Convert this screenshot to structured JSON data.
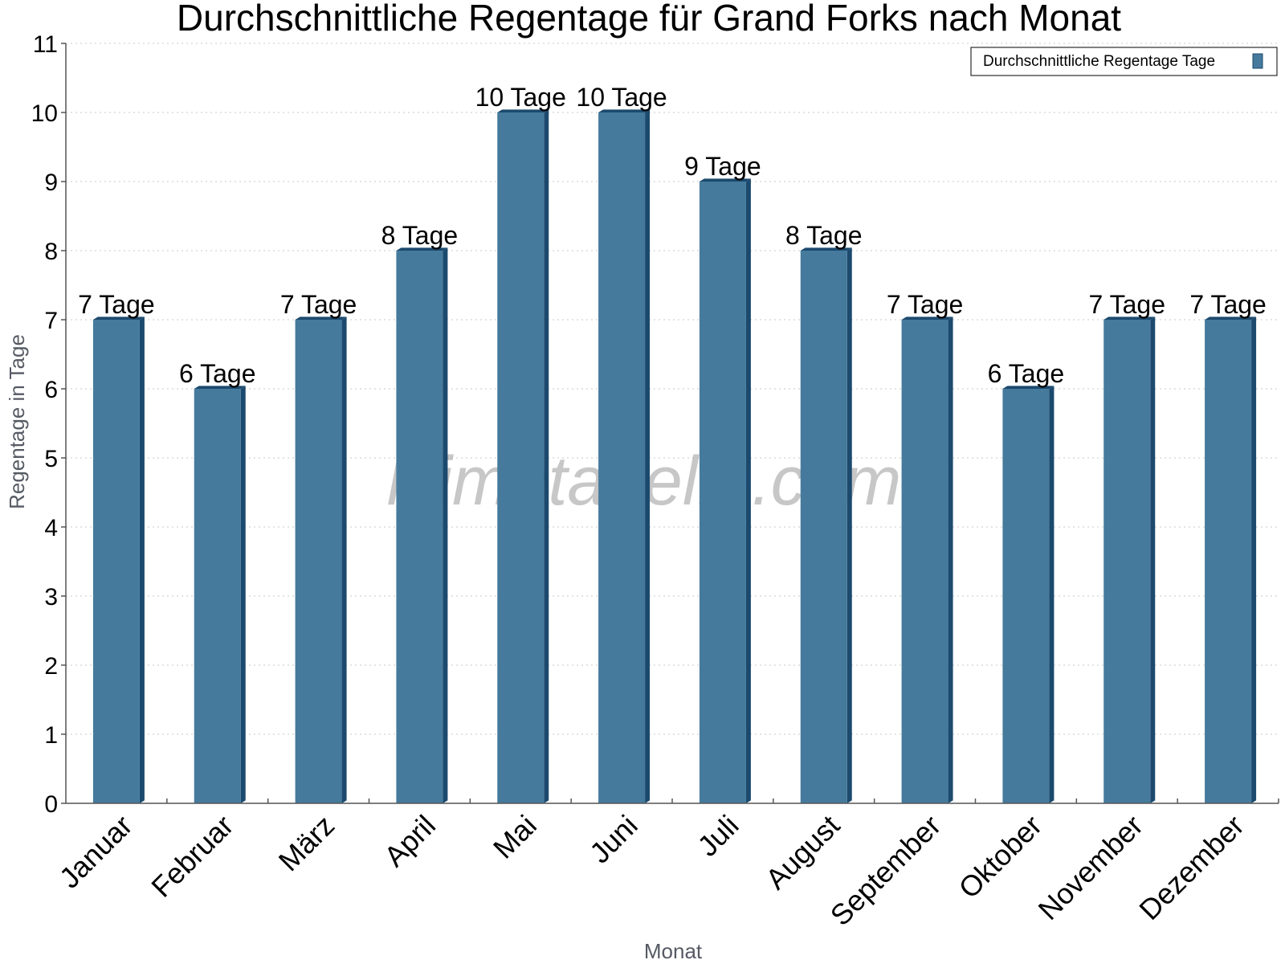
{
  "chart_data": {
    "type": "bar",
    "title": "Durchschnittliche Regentage für Grand Forks nach Monat",
    "xlabel": "Monat",
    "ylabel": "Regentage in Tage",
    "categories": [
      "Januar",
      "Februar",
      "März",
      "April",
      "Mai",
      "Juni",
      "Juli",
      "August",
      "September",
      "Oktober",
      "November",
      "Dezember"
    ],
    "series": [
      {
        "name": "Durchschnittliche Regentage Tage",
        "values": [
          7,
          6,
          7,
          8,
          10,
          10,
          9,
          8,
          7,
          6,
          7,
          7
        ],
        "data_labels": [
          "7 Tage",
          "6 Tage",
          "7 Tage",
          "8 Tage",
          "10 Tage",
          "10 Tage",
          "9 Tage",
          "8 Tage",
          "7 Tage",
          "6 Tage",
          "7 Tage",
          "7 Tage"
        ]
      }
    ],
    "ylim": [
      0,
      11
    ],
    "yticks": [
      "0",
      "1",
      "2",
      "3",
      "4",
      "5",
      "6",
      "7",
      "8",
      "9",
      "10",
      "11"
    ],
    "grid": true,
    "legend_position": "top-right",
    "bar_color": "#457a9c",
    "bar_side_color": "#1c4a6e"
  },
  "watermark": "klimatabelle.com"
}
